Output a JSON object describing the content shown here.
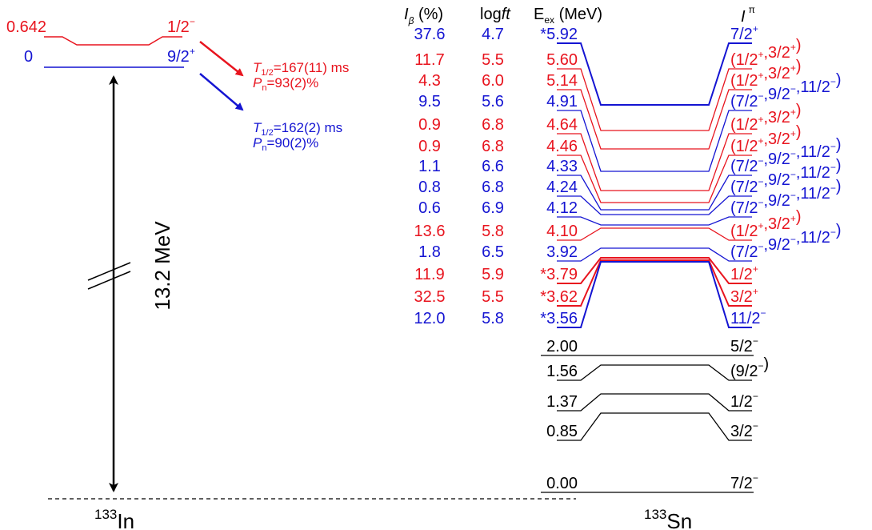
{
  "parent": {
    "nucleus_mass": "133",
    "nucleus_symbol": "In",
    "gap_label": "13.2 MeV",
    "states": [
      {
        "energy": "0.642",
        "spin": "1/2",
        "parity": "−",
        "color": "#e8141e"
      },
      {
        "energy": "0",
        "spin": "9/2",
        "parity": "+",
        "color": "#1414d2"
      }
    ],
    "decays": [
      {
        "halflife_symbol": "T",
        "halflife_sub": "1/2",
        "halflife_value": "=167(11) ms",
        "pn_symbol": "P",
        "pn_sub": "n",
        "pn_value": "=93(2)%",
        "color": "#e8141e"
      },
      {
        "halflife_symbol": "T",
        "halflife_sub": "1/2",
        "halflife_value": "=162(2) ms",
        "pn_symbol": "P",
        "pn_sub": "n",
        "pn_value": "=90(2)%",
        "color": "#1414d2"
      }
    ]
  },
  "daughter": {
    "nucleus_mass": "133",
    "nucleus_symbol": "Sn",
    "headers": {
      "ib_symbol": "I",
      "ib_sub": "β",
      "ib_unit": " (%)",
      "logft_prefix": "log",
      "logft_italic": "ft",
      "eex_symbol": "E",
      "eex_sub": "ex",
      "eex_unit": " (MeV)",
      "jpi_symbol": "I",
      "jpi_sup": "π"
    },
    "levels": [
      {
        "energy": "*5.92",
        "ib": "37.6",
        "logft": "4.7",
        "jpi": [
          [
            "7/2",
            "+"
          ]
        ],
        "color": "#1414d2"
      },
      {
        "energy": "5.60",
        "ib": "11.7",
        "logft": "5.5",
        "jpi": [
          [
            "(1/2",
            "+"
          ],
          [
            ",3/2",
            "+"
          ],
          [
            ")",
            ""
          ]
        ],
        "color": "#e8141e"
      },
      {
        "energy": "5.14",
        "ib": "4.3",
        "logft": "6.0",
        "jpi": [
          [
            "(1/2",
            "+"
          ],
          [
            ",3/2",
            "+"
          ],
          [
            ")",
            ""
          ]
        ],
        "color": "#e8141e"
      },
      {
        "energy": "4.91",
        "ib": "9.5",
        "logft": "5.6",
        "jpi": [
          [
            "(7/2",
            "−"
          ],
          [
            ",9/2",
            "−"
          ],
          [
            ",11/2",
            "−"
          ],
          [
            ")",
            ""
          ]
        ],
        "color": "#1414d2"
      },
      {
        "energy": "4.64",
        "ib": "0.9",
        "logft": "6.8",
        "jpi": [
          [
            "(1/2",
            "+"
          ],
          [
            ",3/2",
            "+"
          ],
          [
            ")",
            ""
          ]
        ],
        "color": "#e8141e"
      },
      {
        "energy": "4.46",
        "ib": "0.9",
        "logft": "6.8",
        "jpi": [
          [
            "(1/2",
            "+"
          ],
          [
            ",3/2",
            "+"
          ],
          [
            ")",
            ""
          ]
        ],
        "color": "#e8141e"
      },
      {
        "energy": "4.33",
        "ib": "1.1",
        "logft": "6.6",
        "jpi": [
          [
            "(7/2",
            "−"
          ],
          [
            ",9/2",
            "−"
          ],
          [
            ",11/2",
            "−"
          ],
          [
            ")",
            ""
          ]
        ],
        "color": "#1414d2"
      },
      {
        "energy": "4.24",
        "ib": "0.8",
        "logft": "6.8",
        "jpi": [
          [
            "(7/2",
            "−"
          ],
          [
            ",9/2",
            "−"
          ],
          [
            ",11/2",
            "−"
          ],
          [
            ")",
            ""
          ]
        ],
        "color": "#1414d2"
      },
      {
        "energy": "4.12",
        "ib": "0.6",
        "logft": "6.9",
        "jpi": [
          [
            "(7/2",
            "−"
          ],
          [
            ",9/2",
            "−"
          ],
          [
            ",11/2",
            "−"
          ],
          [
            ")",
            ""
          ]
        ],
        "color": "#1414d2"
      },
      {
        "energy": "4.10",
        "ib": "13.6",
        "logft": "5.8",
        "jpi": [
          [
            "(1/2",
            "+"
          ],
          [
            ",3/2",
            "+"
          ],
          [
            ")",
            ""
          ]
        ],
        "color": "#e8141e"
      },
      {
        "energy": "3.92",
        "ib": "1.8",
        "logft": "6.5",
        "jpi": [
          [
            "(7/2",
            "−"
          ],
          [
            ",9/2",
            "−"
          ],
          [
            ",11/2",
            "−"
          ],
          [
            ")",
            ""
          ]
        ],
        "color": "#1414d2"
      },
      {
        "energy": "*3.79",
        "ib": "11.9",
        "logft": "5.9",
        "jpi": [
          [
            "1/2",
            "+"
          ]
        ],
        "color": "#e8141e"
      },
      {
        "energy": "*3.62",
        "ib": "32.5",
        "logft": "5.5",
        "jpi": [
          [
            "3/2",
            "+"
          ]
        ],
        "color": "#e8141e"
      },
      {
        "energy": "*3.56",
        "ib": "12.0",
        "logft": "5.8",
        "jpi": [
          [
            "11/2",
            "−"
          ]
        ],
        "color": "#1414d2"
      },
      {
        "energy": "2.00",
        "ib": "",
        "logft": "",
        "jpi": [
          [
            "5/2",
            "−"
          ]
        ],
        "color": "#000000"
      },
      {
        "energy": "1.56",
        "ib": "",
        "logft": "",
        "jpi": [
          [
            "(9/2",
            "−"
          ],
          [
            ")",
            ""
          ]
        ],
        "color": "#000000"
      },
      {
        "energy": "1.37",
        "ib": "",
        "logft": "",
        "jpi": [
          [
            "1/2",
            "−"
          ]
        ],
        "color": "#000000"
      },
      {
        "energy": "0.85",
        "ib": "",
        "logft": "",
        "jpi": [
          [
            "3/2",
            "−"
          ]
        ],
        "color": "#000000"
      },
      {
        "energy": "0.00",
        "ib": "",
        "logft": "",
        "jpi": [
          [
            "7/2",
            "−"
          ]
        ],
        "color": "#000000"
      }
    ]
  }
}
